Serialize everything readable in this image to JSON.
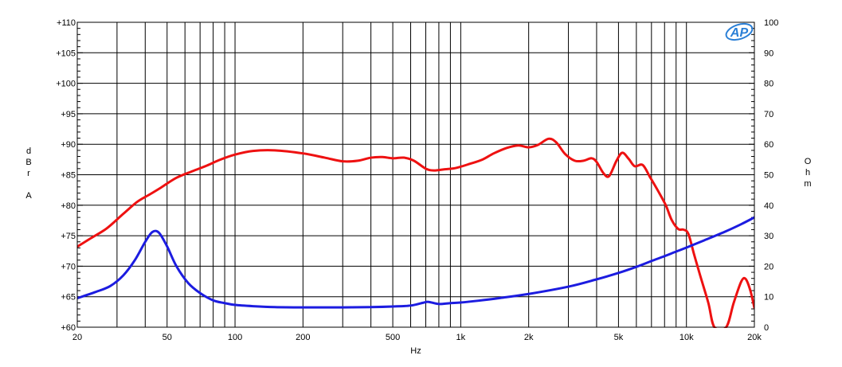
{
  "chart_data": {
    "type": "line",
    "xlabel": "Hz",
    "x_scale": "log",
    "xlim": [
      20,
      20000
    ],
    "x_ticks": [
      20,
      50,
      100,
      200,
      500,
      1000,
      2000,
      5000,
      10000,
      20000
    ],
    "x_tick_labels": [
      "20",
      "50",
      "100",
      "200",
      "500",
      "1k",
      "2k",
      "5k",
      "10k",
      "20k"
    ],
    "x_gridlines": [
      20,
      30,
      40,
      50,
      60,
      70,
      80,
      90,
      100,
      200,
      300,
      400,
      500,
      600,
      700,
      800,
      900,
      1000,
      2000,
      3000,
      4000,
      5000,
      6000,
      7000,
      8000,
      9000,
      10000,
      20000
    ],
    "ylabel_left": [
      "d",
      "B",
      "r",
      "",
      "A"
    ],
    "ylim_left": [
      60,
      110
    ],
    "y_ticks_left": [
      60,
      65,
      70,
      75,
      80,
      85,
      90,
      95,
      100,
      105,
      110
    ],
    "y_tick_labels_left": [
      "+60",
      "+65",
      "+70",
      "+75",
      "+80",
      "+85",
      "+90",
      "+95",
      "+100",
      "+105",
      "+110"
    ],
    "ylabel_right": [
      "O",
      "h",
      "m"
    ],
    "ylim_right": [
      0,
      100
    ],
    "y_ticks_right": [
      0,
      10,
      20,
      30,
      40,
      50,
      60,
      70,
      80,
      90,
      100
    ],
    "y_tick_labels_right": [
      "0",
      "10",
      "20",
      "30",
      "40",
      "50",
      "60",
      "70",
      "80",
      "90",
      "100"
    ],
    "grid": true,
    "logo": "AP",
    "series": [
      {
        "axis": "left",
        "color": "#ee1111",
        "points": [
          [
            20,
            73.2
          ],
          [
            23,
            74.6
          ],
          [
            27,
            76.2
          ],
          [
            32,
            78.6
          ],
          [
            37,
            80.6
          ],
          [
            42,
            81.8
          ],
          [
            47,
            82.9
          ],
          [
            55,
            84.5
          ],
          [
            65,
            85.6
          ],
          [
            75,
            86.5
          ],
          [
            85,
            87.4
          ],
          [
            100,
            88.3
          ],
          [
            120,
            88.9
          ],
          [
            150,
            89.0
          ],
          [
            200,
            88.5
          ],
          [
            250,
            87.8
          ],
          [
            300,
            87.2
          ],
          [
            350,
            87.3
          ],
          [
            400,
            87.8
          ],
          [
            450,
            87.9
          ],
          [
            500,
            87.7
          ],
          [
            560,
            87.8
          ],
          [
            620,
            87.3
          ],
          [
            700,
            86.0
          ],
          [
            760,
            85.7
          ],
          [
            850,
            85.9
          ],
          [
            950,
            86.1
          ],
          [
            1100,
            86.8
          ],
          [
            1250,
            87.5
          ],
          [
            1400,
            88.5
          ],
          [
            1600,
            89.4
          ],
          [
            1800,
            89.8
          ],
          [
            2000,
            89.5
          ],
          [
            2200,
            89.9
          ],
          [
            2450,
            90.9
          ],
          [
            2650,
            90.3
          ],
          [
            2900,
            88.4
          ],
          [
            3200,
            87.3
          ],
          [
            3500,
            87.3
          ],
          [
            3800,
            87.7
          ],
          [
            4000,
            87.1
          ],
          [
            4300,
            85.2
          ],
          [
            4550,
            84.8
          ],
          [
            4900,
            87.3
          ],
          [
            5200,
            88.6
          ],
          [
            5550,
            87.6
          ],
          [
            5900,
            86.4
          ],
          [
            6400,
            86.6
          ],
          [
            6900,
            84.6
          ],
          [
            7500,
            82.3
          ],
          [
            8100,
            80.0
          ],
          [
            8600,
            77.6
          ],
          [
            9200,
            76.1
          ],
          [
            9700,
            76.0
          ],
          [
            10200,
            75.3
          ],
          [
            10800,
            72.0
          ],
          [
            11500,
            68.5
          ],
          [
            12500,
            64.0
          ],
          [
            13300,
            60.0
          ],
          [
            15000,
            60.0
          ],
          [
            16200,
            64.0
          ],
          [
            17500,
            67.5
          ],
          [
            18300,
            67.9
          ],
          [
            19200,
            66.0
          ],
          [
            20000,
            63.2
          ]
        ]
      },
      {
        "axis": "right",
        "color": "#1c1ce0",
        "points": [
          [
            20,
            9.5
          ],
          [
            24,
            11.5
          ],
          [
            28,
            13.5
          ],
          [
            32,
            17.0
          ],
          [
            36,
            22.0
          ],
          [
            40,
            28.0
          ],
          [
            43,
            31.2
          ],
          [
            46,
            31.0
          ],
          [
            50,
            26.5
          ],
          [
            55,
            20.0
          ],
          [
            62,
            14.5
          ],
          [
            70,
            11.2
          ],
          [
            80,
            8.8
          ],
          [
            90,
            7.9
          ],
          [
            100,
            7.3
          ],
          [
            120,
            6.9
          ],
          [
            150,
            6.6
          ],
          [
            200,
            6.5
          ],
          [
            300,
            6.5
          ],
          [
            400,
            6.6
          ],
          [
            500,
            6.8
          ],
          [
            600,
            7.1
          ],
          [
            680,
            8.0
          ],
          [
            720,
            8.3
          ],
          [
            800,
            7.6
          ],
          [
            900,
            7.9
          ],
          [
            1000,
            8.1
          ],
          [
            1200,
            8.7
          ],
          [
            1500,
            9.6
          ],
          [
            2000,
            10.9
          ],
          [
            3000,
            13.3
          ],
          [
            4000,
            15.7
          ],
          [
            5000,
            17.8
          ],
          [
            6000,
            19.8
          ],
          [
            7000,
            21.7
          ],
          [
            8000,
            23.3
          ],
          [
            9000,
            24.8
          ],
          [
            10000,
            26.1
          ],
          [
            12000,
            28.5
          ],
          [
            15000,
            31.5
          ],
          [
            17500,
            33.8
          ],
          [
            20000,
            36.0
          ]
        ]
      }
    ]
  }
}
